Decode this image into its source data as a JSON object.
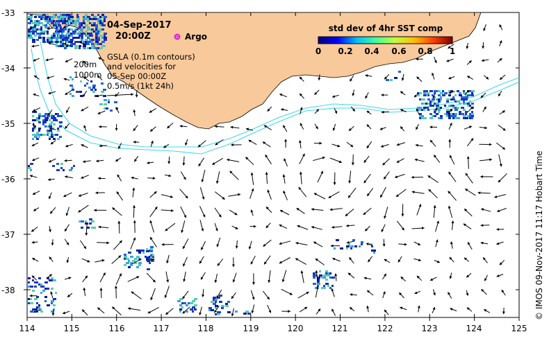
{
  "map": {
    "date_line": "04-Sep-2017",
    "time_line": "20:00Z",
    "argo_label": "Argo",
    "gsla_lines": [
      "GSLA (0.1m contours)",
      "and velocities for",
      "05-Sep 00:00Z",
      "0.5m/s (1kt 24h)"
    ],
    "isobath_labels": [
      "200m",
      "1000m"
    ],
    "colorbar": {
      "title": "std dev of 4hr SST comp",
      "ticks": [
        "0",
        "0.2",
        "0.4",
        "0.6",
        "0.8",
        "1"
      ],
      "stops": [
        "#00007f",
        "#0000ff",
        "#00bfff",
        "#40ff9f",
        "#bfff3f",
        "#ffbf00",
        "#ff4000",
        "#7f0000"
      ]
    },
    "credit": "© IMOS 09-Nov-2017 11:17 Hobart Time",
    "colors": {
      "land": "#f8c99a",
      "isobath": "#40d8e8",
      "argo_marker": "#e000e0",
      "arrow": "#000000"
    }
  },
  "chart_data": {
    "type": "map",
    "x_ticks": [
      "114",
      "115",
      "116",
      "117",
      "118",
      "119",
      "120",
      "121",
      "122",
      "123",
      "124",
      "125"
    ],
    "y_ticks": [
      "-33",
      "-34",
      "-35",
      "-36",
      "-37",
      "-38"
    ],
    "xlim": [
      114,
      125
    ],
    "ylim": [
      -38.5,
      -33
    ],
    "argo_position": {
      "lon": 117.3,
      "lat": -33.42
    }
  }
}
